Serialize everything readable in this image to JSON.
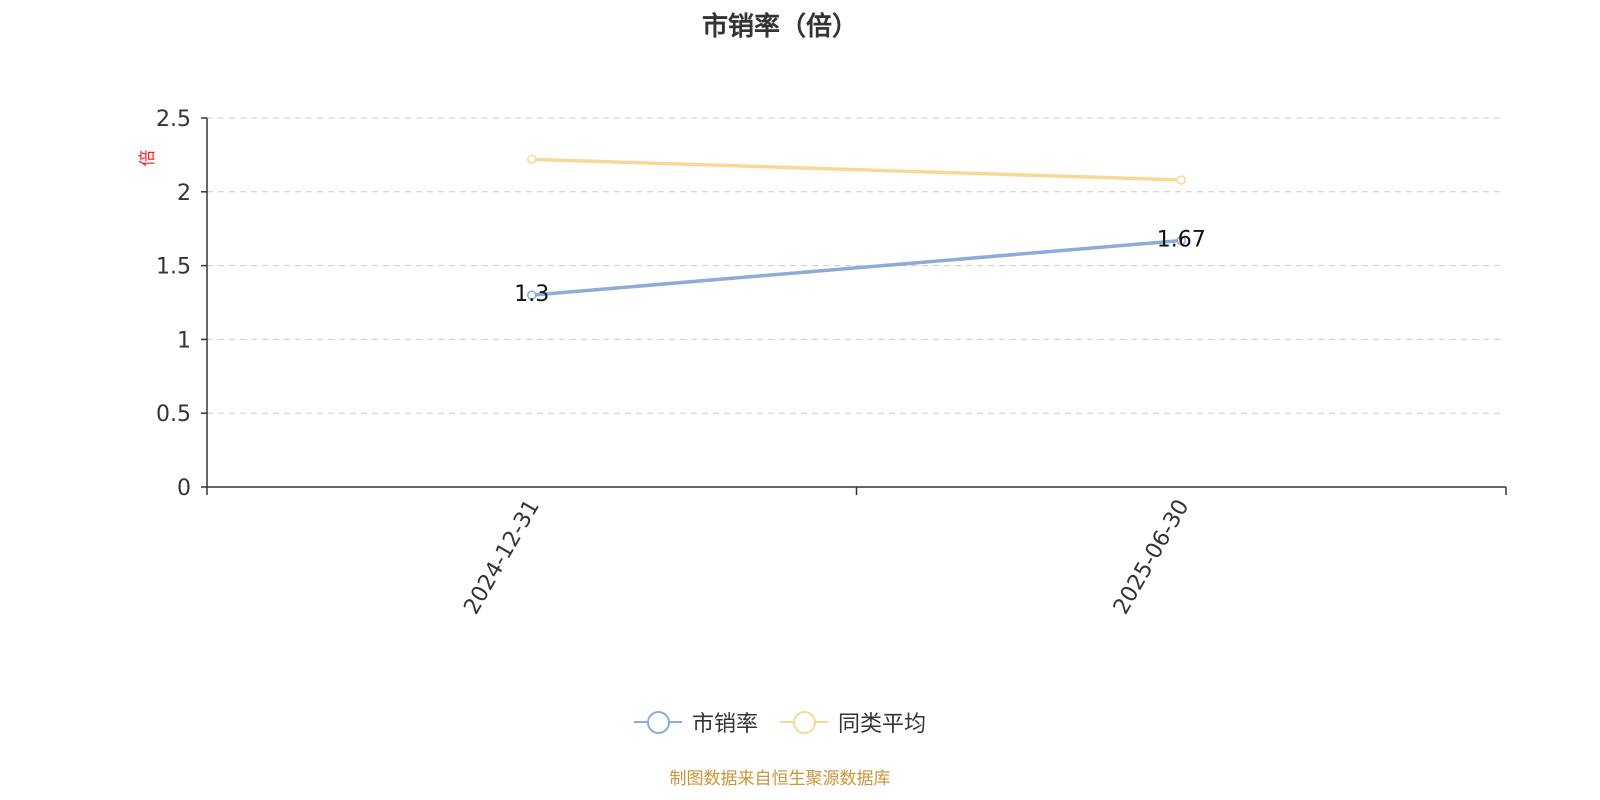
{
  "chart_data": {
    "type": "line",
    "title": "市销率（倍）",
    "ylabel": "倍",
    "xlabel": "",
    "x": [
      "2024-12-31",
      "2025-06-30"
    ],
    "ylim": [
      0,
      2.5
    ],
    "yticks": [
      "0",
      "0.5",
      "1",
      "1.5",
      "2",
      "2.5"
    ],
    "grid": true,
    "legend_position": "bottom",
    "series": [
      {
        "name": "市销率",
        "values": [
          1.3,
          1.67
        ],
        "labels": [
          "1.3",
          "1.67"
        ],
        "color": "#8eaad8"
      },
      {
        "name": "同类平均",
        "values": [
          2.22,
          2.08
        ],
        "color": "#f8d898"
      }
    ],
    "source": "制图数据来自恒生聚源数据库"
  }
}
